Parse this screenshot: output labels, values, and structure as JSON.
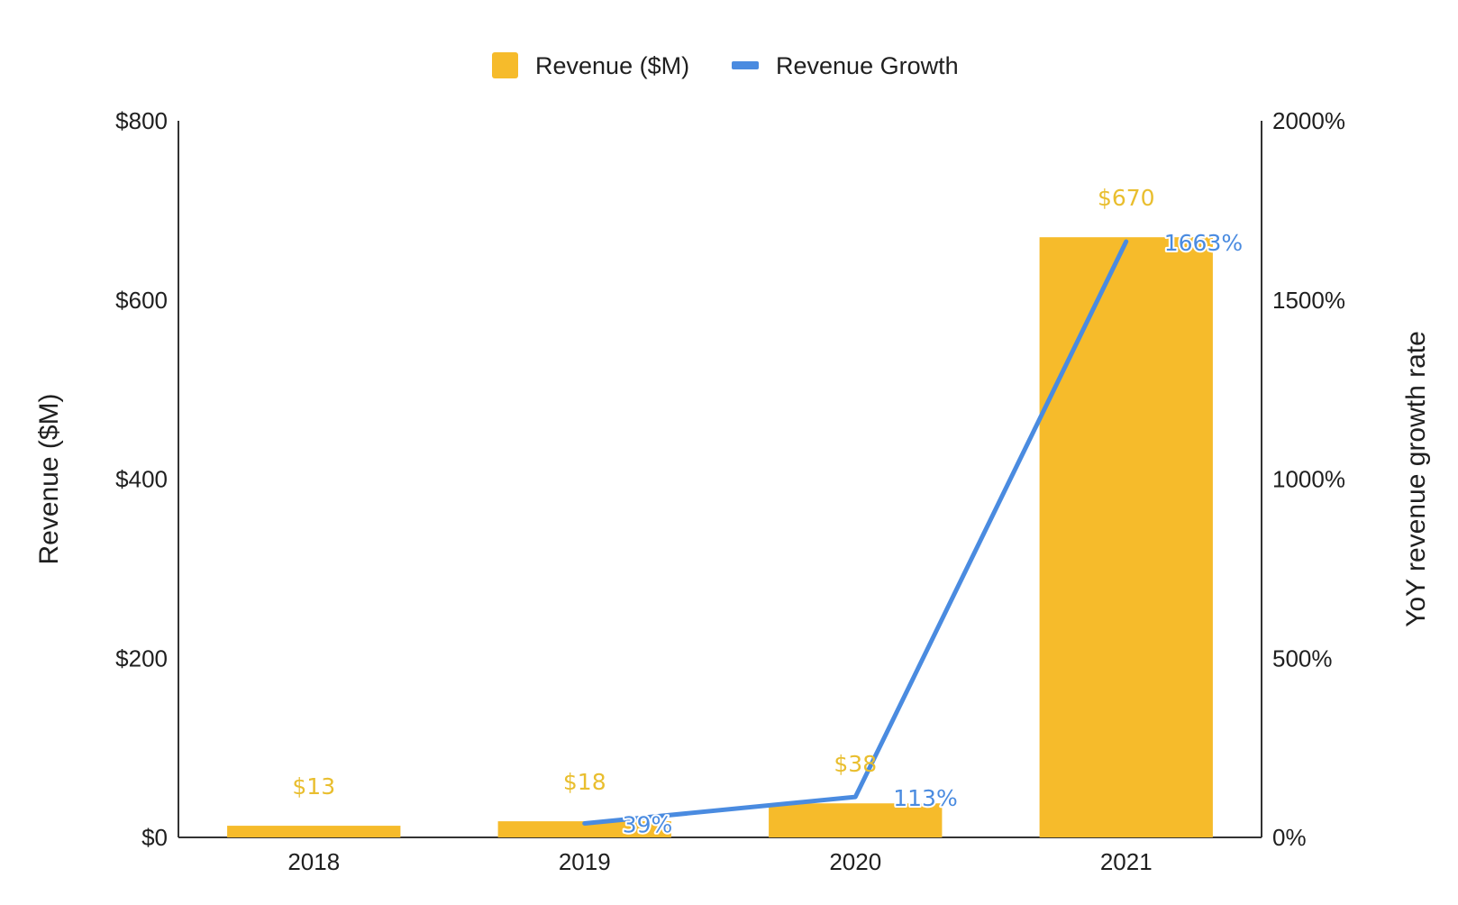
{
  "chart_data": {
    "type": "bar",
    "title": "",
    "categories": [
      "2018",
      "2019",
      "2020",
      "2021"
    ],
    "series": [
      {
        "name": "Revenue ($M)",
        "type": "bar",
        "axis": "left",
        "values": [
          13,
          18,
          38,
          670
        ],
        "labels": [
          "$13",
          "$18",
          "$38",
          "$670"
        ],
        "color": "#F6BB2B"
      },
      {
        "name": "Revenue Growth",
        "type": "line",
        "axis": "right",
        "values": [
          null,
          39,
          113,
          1663
        ],
        "labels": [
          "",
          "39%",
          "113%",
          "1663%"
        ],
        "color": "#4A8BE0"
      }
    ],
    "ylabel": "Revenue ($M)",
    "y2label": "YoY revenue growth rate",
    "ylim": [
      0,
      800
    ],
    "y2lim": [
      0,
      2000
    ],
    "yticks": [
      0,
      200,
      400,
      600,
      800
    ],
    "ytick_labels": [
      "$0",
      "$200",
      "$400",
      "$600",
      "$800"
    ],
    "y2ticks": [
      0,
      500,
      1000,
      1500,
      2000
    ],
    "y2tick_labels": [
      "0%",
      "500%",
      "1000%",
      "1500%",
      "2000%"
    ],
    "grid": false,
    "legend_position": "top-center",
    "label_color_bar": "#E9BE2E",
    "label_color_line": "#4A8BE0"
  }
}
